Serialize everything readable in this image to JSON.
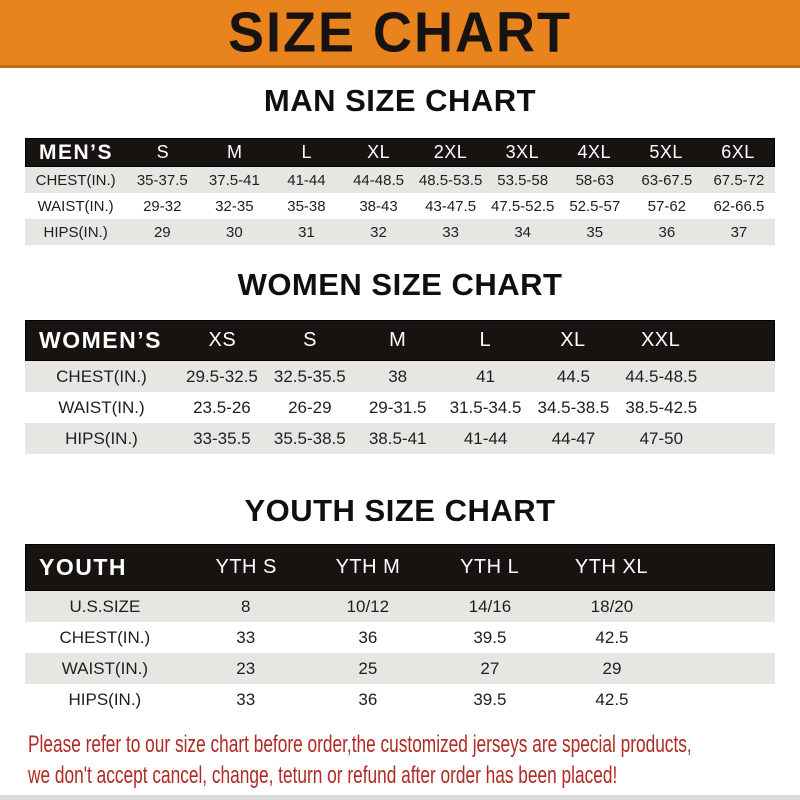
{
  "banner": {
    "title": "SIZE CHART"
  },
  "colors": {
    "accent_orange": "#E8831E",
    "header_bar_black": "#171310",
    "stripe_gray": "#E8E6E3",
    "notice_red": "#AF2B24"
  },
  "sections": [
    {
      "id": "men",
      "heading": "MAN SIZE CHART",
      "table": {
        "header_label": "MEN’S",
        "columns": [
          "S",
          "M",
          "L",
          "XL",
          "2XL",
          "3XL",
          "4XL",
          "5XL",
          "6XL"
        ],
        "rows": [
          {
            "label": "CHEST(IN.)",
            "values": [
              "35-37.5",
              "37.5-41",
              "41-44",
              "44-48.5",
              "48.5-53.5",
              "53.5-58",
              "58-63",
              "63-67.5",
              "67.5-72"
            ]
          },
          {
            "label": "WAIST(IN.)",
            "values": [
              "29-32",
              "32-35",
              "35-38",
              "38-43",
              "43-47.5",
              "47.5-52.5",
              "52.5-57",
              "57-62",
              "62-66.5"
            ]
          },
          {
            "label": "HIPS(IN.)",
            "values": [
              "29",
              "30",
              "31",
              "32",
              "33",
              "34",
              "35",
              "36",
              "37"
            ]
          }
        ]
      }
    },
    {
      "id": "women",
      "heading": "WOMEN SIZE CHART",
      "table": {
        "header_label": "WOMEN’S",
        "columns": [
          "XS",
          "S",
          "M",
          "L",
          "XL",
          "XXL"
        ],
        "rows": [
          {
            "label": "CHEST(IN.)",
            "values": [
              "29.5-32.5",
              "32.5-35.5",
              "38",
              "41",
              "44.5",
              "44.5-48.5"
            ]
          },
          {
            "label": "WAIST(IN.)",
            "values": [
              "23.5-26",
              "26-29",
              "29-31.5",
              "31.5-34.5",
              "34.5-38.5",
              "38.5-42.5"
            ]
          },
          {
            "label": "HIPS(IN.)",
            "values": [
              "33-35.5",
              "35.5-38.5",
              "38.5-41",
              "41-44",
              "44-47",
              "47-50"
            ]
          }
        ]
      }
    },
    {
      "id": "youth",
      "heading": "YOUTH SIZE CHART",
      "table": {
        "header_label": "YOUTH",
        "columns": [
          "YTH S",
          "YTH M",
          "YTH L",
          "YTH XL"
        ],
        "rows": [
          {
            "label": "U.S.SIZE",
            "values": [
              "8",
              "10/12",
              "14/16",
              "18/20"
            ]
          },
          {
            "label": "CHEST(IN.)",
            "values": [
              "33",
              "36",
              "39.5",
              "42.5"
            ]
          },
          {
            "label": "WAIST(IN.)",
            "values": [
              "23",
              "25",
              "27",
              "29"
            ]
          },
          {
            "label": "HIPS(IN.)",
            "values": [
              "33",
              "36",
              "39.5",
              "42.5"
            ]
          }
        ]
      }
    }
  ],
  "notice": {
    "line1": "Please refer to our size chart before order,the customized jerseys are special products,",
    "line2": "we don't accept cancel, change, teturn or refund after order has been placed!"
  }
}
